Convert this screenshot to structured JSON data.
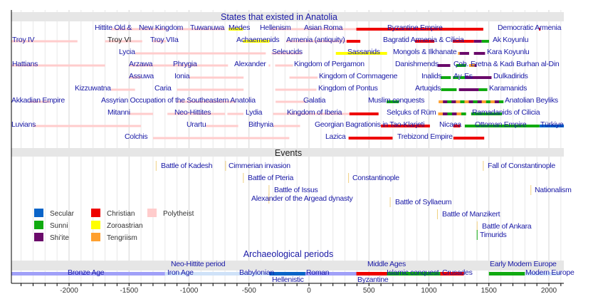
{
  "chart_data": {
    "type": "timeline",
    "xlim": [
      -2480,
      2125
    ],
    "x_ticks": [
      -2000,
      -1500,
      -1000,
      -500,
      0,
      500,
      1000,
      1500,
      2000
    ],
    "grid": true,
    "colors": {
      "secular": "#0a64c8",
      "sunni": "#10aa10",
      "shiite": "#6a0a6a",
      "christian": "#ee0000",
      "zoroastrian": "#ffff00",
      "tengriism": "#ffa030",
      "polytheist": "#ffcccc",
      "bronze": "#a0a0f8",
      "iron": "#cfe2f8",
      "event": "#f0d080",
      "green_event": "#10aa10"
    },
    "legend": [
      {
        "label": "Secular",
        "key": "secular"
      },
      {
        "label": "Sunni",
        "key": "sunni"
      },
      {
        "label": "Shi'ite",
        "key": "shiite"
      },
      {
        "label": "Christian",
        "key": "christian"
      },
      {
        "label": "Zoroastrian",
        "key": "zoroastrian"
      },
      {
        "label": "Tengriism",
        "key": "tengriism"
      },
      {
        "label": "Polytheist",
        "key": "polytheist"
      }
    ],
    "sections": {
      "states": "States that existed in Anatolia",
      "events": "Events",
      "archaeological": "Archaeological periods"
    },
    "states_lanes": [
      [
        {
          "label": "Hittite Old &",
          "start": -1650,
          "end": -1400,
          "key": "polytheist"
        },
        {
          "label": "New Kingdom",
          "start": -1400,
          "end": -1180,
          "key": "polytheist"
        },
        {
          "label": "Tuwanuwa",
          "start": -1100,
          "end": -700,
          "key": "polytheist"
        },
        {
          "label": "Medes",
          "start": -670,
          "end": -550,
          "key": "zoroastrian"
        },
        {
          "label": "Hellenism",
          "start": -330,
          "end": -30,
          "key": "polytheist"
        },
        {
          "label": "Asian Roma",
          "start": -30,
          "end": 395,
          "key": "polytheist"
        },
        {
          "label": "Byzantine Empire",
          "start": 395,
          "end": 1453,
          "key": "christian"
        },
        {
          "label": "Democratic Armenia",
          "start": 1918,
          "end": 1920,
          "key": "christian"
        }
      ],
      [
        {
          "label": "Troy IV",
          "start": -2480,
          "end": -1930,
          "key": "polytheist"
        },
        {
          "label": "Troy VI",
          "start": -1700,
          "end": -1390,
          "key": "polytheist"
        },
        {
          "label": "Troy VIIa",
          "start": -1300,
          "end": -1190,
          "key": "polytheist"
        },
        {
          "label": "Achaemenids",
          "start": -550,
          "end": -330,
          "key": "zoroastrian"
        },
        {
          "label": "Armenia (antiquity)",
          "start": -190,
          "end": 428,
          "key": "polytheist"
        },
        {
          "label": "",
          "start": 314,
          "end": 428,
          "key": "christian"
        },
        {
          "label": "Bagratid Armenia & Cilicia",
          "start": 885,
          "end": 1045,
          "key": "christian"
        },
        {
          "label": "",
          "start": 1198,
          "end": 1375,
          "key": "christian"
        },
        {
          "label": "",
          "start": 1375,
          "end": 1440,
          "key": "shiite"
        },
        {
          "label": "Ak Koyunlu",
          "start": 1440,
          "end": 1501,
          "key": "sunni"
        }
      ],
      [
        {
          "label": "Lycia",
          "start": -1450,
          "end": -360,
          "key": "polytheist"
        },
        {
          "label": "Seleucids",
          "start": -312,
          "end": -63,
          "key": "polytheist"
        },
        {
          "label": "Sassanids",
          "start": 224,
          "end": 651,
          "key": "zoroastrian"
        },
        {
          "label": "Mongols & Ilkhanate",
          "start": 1243,
          "end": 1256,
          "key": "tengriism"
        },
        {
          "label": "",
          "start": 1256,
          "end": 1335,
          "key": "shiite"
        },
        {
          "label": "Kara Koyunlu",
          "start": 1375,
          "end": 1468,
          "key": "shiite"
        }
      ],
      [
        {
          "label": "Hattians",
          "start": -2480,
          "end": -1700,
          "key": "polytheist"
        },
        {
          "label": "Arzawa",
          "start": -1500,
          "end": -1200,
          "key": "polytheist"
        },
        {
          "label": "Phrygia",
          "start": -1200,
          "end": -675,
          "key": "polytheist"
        },
        {
          "label": "Alexander",
          "start": -336,
          "end": -323,
          "key": "polytheist"
        },
        {
          "label": "Kingdom of Pergamon",
          "start": -282,
          "end": -133,
          "key": "polytheist"
        },
        {
          "label": "Danishmends",
          "start": 1071,
          "end": 1178,
          "key": "shiite"
        },
        {
          "label": "Çob.",
          "start": 1227,
          "end": 1309,
          "key": "sunni"
        },
        {
          "label": "Eretna & Kadı Burhan al-Din",
          "start": 1335,
          "end": 1381,
          "key": "tengriism"
        },
        {
          "label": "",
          "start": 1381,
          "end": 1398,
          "key": "shiite"
        }
      ],
      [
        {
          "label": "Assuwa",
          "start": -1500,
          "end": -1400,
          "key": "polytheist"
        },
        {
          "label": "Ionia",
          "start": -1000,
          "end": -545,
          "key": "polytheist"
        },
        {
          "label": "Kingdom of Commagene",
          "start": -163,
          "end": 72,
          "key": "polytheist"
        },
        {
          "label": "Inalids",
          "start": 1098,
          "end": 1183,
          "key": "sunni"
        },
        {
          "label": "Ay",
          "start": 1200,
          "end": 1250,
          "key": "sunni"
        },
        {
          "label": "Es",
          "start": 1260,
          "end": 1300,
          "key": "sunni"
        },
        {
          "label": "Dulkadirids",
          "start": 1300,
          "end": 1522,
          "key": "shiite"
        }
      ],
      [
        {
          "label": "Kizzuwatna",
          "start": -1650,
          "end": -1450,
          "key": "polytheist"
        },
        {
          "label": "Caria",
          "start": -1100,
          "end": -545,
          "key": "polytheist"
        },
        {
          "label": "Kingdom of Pontus",
          "start": -281,
          "end": 62,
          "key": "polytheist"
        },
        {
          "label": "Artuqids",
          "start": 1101,
          "end": 1231,
          "key": "sunni"
        },
        {
          "label": "",
          "start": 1250,
          "end": 1415,
          "key": "shiite"
        },
        {
          "label": "Karamanids",
          "start": 1415,
          "end": 1487,
          "key": "sunni"
        }
      ],
      [
        {
          "label": "Akkadian Empire",
          "start": -2334,
          "end": -2154,
          "key": "polytheist"
        },
        {
          "label": "Assyrian Occupation of the Southeastern Anatolia",
          "start": -1100,
          "end": -609,
          "key": "polytheist"
        },
        {
          "label": "Galatia",
          "start": -278,
          "end": -25,
          "key": "polytheist"
        },
        {
          "label": "Muslim conquests",
          "start": 647,
          "end": 750,
          "key": "sunni"
        },
        {
          "label": "Anatolian Beyliks",
          "start": 1081,
          "end": 1620,
          "key": "mixed"
        }
      ],
      [
        {
          "label": "Mitanni",
          "start": -1500,
          "end": -1300,
          "key": "polytheist"
        },
        {
          "label": "Neo-Hittites",
          "start": -1180,
          "end": -700,
          "key": "polytheist"
        },
        {
          "label": "Lydia",
          "start": -680,
          "end": -546,
          "key": "polytheist"
        },
        {
          "label": "Kingdom of Iberia",
          "start": -299,
          "end": 337,
          "key": "polytheist"
        },
        {
          "label": "",
          "start": 337,
          "end": 580,
          "key": "christian"
        },
        {
          "label": "Selçuks of Rüm",
          "start": 1077,
          "end": 1308,
          "key": "mixed"
        },
        {
          "label": "Ramadanids of Cilicia",
          "start": 1352,
          "end": 1608,
          "key": "sunni"
        }
      ],
      [
        {
          "label": "Luvians",
          "start": -2300,
          "end": -1400,
          "key": "polytheist"
        },
        {
          "label": "Urartu",
          "start": -860,
          "end": -590,
          "key": "polytheist"
        },
        {
          "label": "Bithynia",
          "start": -297,
          "end": -74,
          "key": "polytheist"
        },
        {
          "label": "Georgian Bagrationis in Tao-Klarjeti",
          "start": 600,
          "end": 1008,
          "key": "christian"
        },
        {
          "label": "Nicaea",
          "start": 1204,
          "end": 1261,
          "key": "christian"
        },
        {
          "label": "Ottoman Empire",
          "start": 1299,
          "end": 1922,
          "key": "sunni"
        },
        {
          "label": "Türkiye",
          "start": 1923,
          "end": 2125,
          "key": "secular"
        }
      ],
      [
        {
          "label": "Colchis",
          "start": -1300,
          "end": -164,
          "key": "polytheist"
        },
        {
          "label": "Lazica",
          "start": 330,
          "end": 697,
          "key": "christian"
        },
        {
          "label": "Trebizond Empire",
          "start": 1204,
          "end": 1461,
          "key": "christian"
        }
      ]
    ],
    "events": [
      {
        "label": "Battle of Kadesh",
        "year": -1274
      },
      {
        "label": "Cimmerian invasion",
        "year": -695
      },
      {
        "label": "Battle of Pteria",
        "year": -547
      },
      {
        "label": "Constantinople",
        "year": 330
      },
      {
        "label": "Battle of Issus",
        "year": -333
      },
      {
        "label": "Alexander of the Argead dynasty",
        "year": -334
      },
      {
        "label": "Battle of Syllaeum",
        "year": 677
      },
      {
        "label": "Battle of Manzikert",
        "year": 1071
      },
      {
        "label": "Battle of Ankara",
        "year": 1402
      },
      {
        "label": "Timurids",
        "year": 1402
      },
      {
        "label": "Fall of Constantinople",
        "year": 1453
      },
      {
        "label": "Nationalism",
        "year": 1850
      }
    ],
    "periods_upper": [
      {
        "label": "Neo-Hittite period"
      },
      {
        "label": "Middle Ages"
      },
      {
        "label": "Early Modern Europe"
      }
    ],
    "periods": [
      {
        "label": "Bronze Age",
        "start": -2480,
        "end": -1200,
        "key": "bronze"
      },
      {
        "label": "Iron Age",
        "start": -1200,
        "end": -550,
        "key": "iron"
      },
      {
        "label": "Babylonian",
        "start": -626,
        "end": -330,
        "key": "iron"
      },
      {
        "label": "Hellenistic",
        "start": -330,
        "end": -30,
        "key": "secular"
      },
      {
        "label": "Roman",
        "start": -30,
        "end": 395,
        "key": "bronze"
      },
      {
        "label": "Byzantine",
        "start": 395,
        "end": 650,
        "key": "christian"
      },
      {
        "label": "Islamic conquest",
        "start": 650,
        "end": 1095,
        "key": "sunni"
      },
      {
        "label": "Crusades",
        "start": 1095,
        "end": 1291,
        "key": "christian"
      },
      {
        "label": "",
        "start": 1500,
        "end": 1800,
        "key": "sunni"
      },
      {
        "label": "Modern Europe",
        "start": 1800,
        "end": 2100,
        "key": "iron"
      }
    ]
  }
}
